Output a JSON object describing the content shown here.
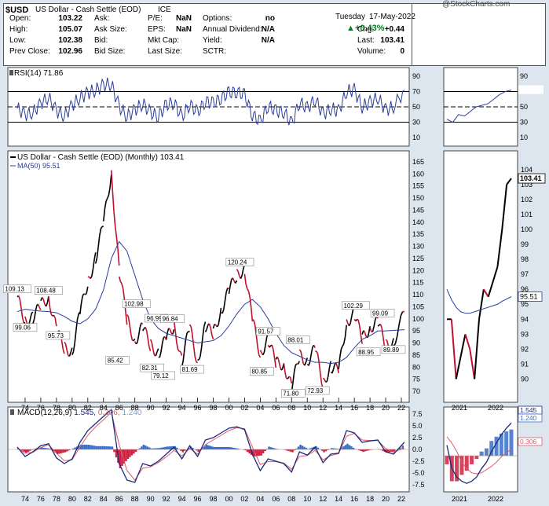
{
  "header": {
    "symbol": "$USD",
    "name": "US Dollar - Cash Settle (EOD)",
    "exchange": "ICE",
    "watermark": "@StockCharts.com",
    "date_day": "Tuesday",
    "date": "17-May-2022",
    "quote_left": [
      {
        "label": "Open:",
        "value": "103.22"
      },
      {
        "label": "High:",
        "value": "105.07"
      },
      {
        "label": "Low:",
        "value": "102.38"
      },
      {
        "label": "Prev Close:",
        "value": "102.96"
      }
    ],
    "quote_mid1": [
      {
        "label": "Ask:",
        "value": ""
      },
      {
        "label": "Ask Size:",
        "value": ""
      },
      {
        "label": "Bid:",
        "value": ""
      },
      {
        "label": "Bid Size:",
        "value": ""
      }
    ],
    "quote_mid2": [
      {
        "label": "P/E:",
        "value": "NaN"
      },
      {
        "label": "EPS:",
        "value": "NaN"
      },
      {
        "label": "Mkt Cap:",
        "value": ""
      },
      {
        "label": "Last Size:",
        "value": ""
      }
    ],
    "quote_mid3": [
      {
        "label": "Options:",
        "value": "no"
      },
      {
        "label": "Annual Dividend:",
        "value": "N/A"
      },
      {
        "label": "Yield:",
        "value": "N/A"
      },
      {
        "label": "SCTR:",
        "value": ""
      }
    ],
    "change_pct": "+0.43%",
    "quote_right": [
      {
        "label": "Chg:",
        "value": "+0.44"
      },
      {
        "label": "Last:",
        "value": "103.41"
      },
      {
        "label": "Volume:",
        "value": "0"
      }
    ]
  },
  "colors": {
    "up": "#000000",
    "down": "#c0102c",
    "ma": "#2a3d9a",
    "rsi": "#2a3d9a",
    "macd": "#1a2a7a",
    "signal": "#e05a6a",
    "hist_pos": "#3a6ec8",
    "hist_neg": "#d02040",
    "bg": "#ffffff",
    "frame_bg": "#dde6ef"
  },
  "rsi_panel": {
    "label": "RSI(14)",
    "value": "71.86",
    "axis_ticks": [
      "90",
      "70",
      "50",
      "30",
      "10"
    ],
    "zoom_ticks": [
      "90",
      "70",
      "50",
      "30",
      "10"
    ],
    "zoom_value": "71.86"
  },
  "price_panel": {
    "label": "US Dollar - Cash Settle (EOD) (Monthly) 103.41",
    "ma_label": "MA(50) 95.51",
    "axis_ticks": [
      "165",
      "160",
      "155",
      "150",
      "145",
      "140",
      "135",
      "130",
      "125",
      "120",
      "115",
      "110",
      "105",
      "100",
      "95",
      "90",
      "85",
      "80",
      "75",
      "70"
    ],
    "zoom_ticks": [
      "104",
      "103",
      "102",
      "101",
      "100",
      "99",
      "98",
      "97",
      "96",
      "95",
      "94",
      "93",
      "92",
      "91",
      "90"
    ],
    "zoom_last": "103.41",
    "zoom_ma": "95.51",
    "annotations": [
      "109.13",
      "108.48",
      "99.06",
      "95.73",
      "85.42",
      "102.98",
      "82.31",
      "96.99",
      "96.84",
      "79.12",
      "81.69",
      "120.24",
      "91.57",
      "80.85",
      "88.01",
      "71.80",
      "72.93",
      "102.29",
      "99.09",
      "88.95",
      "89.89"
    ]
  },
  "macd_panel": {
    "label": "MACD(12,26,9)",
    "macd": "1.545",
    "signal": "0.306",
    "hist": "1.240",
    "axis_ticks": [
      "7.5",
      "5.0",
      "2.5",
      "0.0",
      "-2.5",
      "-5.0",
      "-7.5"
    ],
    "zoom_values": [
      "1.545",
      "1.240",
      "0.306"
    ]
  },
  "x_axis": {
    "years": [
      "74",
      "76",
      "78",
      "80",
      "82",
      "84",
      "86",
      "88",
      "90",
      "92",
      "94",
      "96",
      "98",
      "00",
      "02",
      "04",
      "06",
      "08",
      "10",
      "12",
      "14",
      "16",
      "18",
      "20",
      "22"
    ]
  },
  "zoom_x_axis": {
    "years": [
      "2021",
      "2022"
    ]
  },
  "chart_data": {
    "type": "line",
    "title": "US Dollar - Cash Settle (EOD) (Monthly)",
    "xlabel": "",
    "ylabel": "",
    "ylim": [
      69,
      167
    ],
    "x": [
      1973,
      1974,
      1975,
      1976,
      1977,
      1978,
      1979,
      1980,
      1981,
      1982,
      1983,
      1984,
      1985,
      1986,
      1987,
      1988,
      1989,
      1990,
      1991,
      1992,
      1993,
      1994,
      1995,
      1996,
      1997,
      1998,
      1999,
      2000,
      2001,
      2002,
      2003,
      2004,
      2005,
      2006,
      2007,
      2008,
      2009,
      2010,
      2011,
      2012,
      2013,
      2014,
      2015,
      2016,
      2017,
      2018,
      2019,
      2020,
      2021,
      2022.4
    ],
    "series": [
      {
        "name": "US Dollar - Cash Settle (EOD)",
        "values": [
          109.13,
          99.06,
          100.5,
          106,
          108.48,
          95.73,
          88,
          86,
          103,
          115,
          125,
          140,
          160,
          120,
          100,
          90.5,
          97,
          89,
          85.42,
          92,
          96.99,
          82.31,
          96.84,
          81.69,
          97,
          94,
          102.98,
          112,
          118,
          120.24,
          100,
          85,
          91.57,
          82,
          80.85,
          71.8,
          85,
          82,
          88.01,
          72.93,
          80,
          79,
          98,
          102.29,
          92,
          96,
          99.09,
          88.95,
          89.89,
          103.41
        ]
      },
      {
        "name": "MA(50)",
        "values": [
          103,
          104,
          103.5,
          103.2,
          103,
          102.5,
          101,
          99,
          98,
          100,
          104,
          112,
          125,
          132,
          128,
          118,
          108,
          100,
          96,
          94,
          93,
          92,
          91,
          90,
          90.5,
          91,
          93,
          97,
          102,
          106,
          108,
          105,
          100,
          94,
          89,
          86,
          84.5,
          83,
          82,
          82,
          81.5,
          82,
          84,
          88,
          91.5,
          93,
          95,
          95,
          95.2,
          95.51
        ]
      }
    ],
    "rsi": [
      48,
      40,
      42,
      55,
      62,
      45,
      38,
      52,
      62,
      68,
      72,
      78,
      80,
      50,
      38,
      45,
      55,
      42,
      38,
      52,
      56,
      36,
      54,
      42,
      58,
      54,
      62,
      68,
      70,
      65,
      40,
      30,
      52,
      44,
      44,
      28,
      56,
      48,
      60,
      40,
      48,
      44,
      70,
      72,
      50,
      56,
      62,
      46,
      50,
      71.86
    ],
    "macd": [
      0.5,
      -1.5,
      -0.5,
      0.8,
      1.2,
      -1.8,
      -3,
      -2,
      1.5,
      4,
      5.5,
      7,
      8.5,
      -3,
      -6.5,
      -7,
      -3,
      -3.5,
      -2.5,
      -1,
      0.5,
      -2,
      0.8,
      -1.5,
      2,
      2.5,
      3.5,
      4.5,
      4.8,
      4.2,
      -1,
      -4.5,
      -2,
      -2.5,
      -3,
      -4.8,
      -0.5,
      -1.2,
      0.5,
      -2.8,
      -1,
      -0.8,
      4,
      3.5,
      1.5,
      1.8,
      2,
      -0.5,
      -1,
      1.545
    ],
    "macd_signal": [
      0.3,
      -0.8,
      -0.6,
      0.4,
      1,
      -0.8,
      -2.4,
      -2.2,
      0.5,
      3,
      4.8,
      6.3,
      7.9,
      1,
      -4.5,
      -6.5,
      -4,
      -3.7,
      -2.8,
      -1.6,
      -0.2,
      -1.4,
      0.2,
      -1,
      1,
      2,
      3,
      4,
      4.6,
      4.4,
      0.5,
      -3.2,
      -2.6,
      -2.6,
      -2.9,
      -4.2,
      -1.5,
      -1.3,
      -0.2,
      -2.2,
      -1.3,
      -0.9,
      2.8,
      3.4,
      2,
      1.9,
      1.9,
      0.2,
      -0.6,
      0.306
    ]
  }
}
